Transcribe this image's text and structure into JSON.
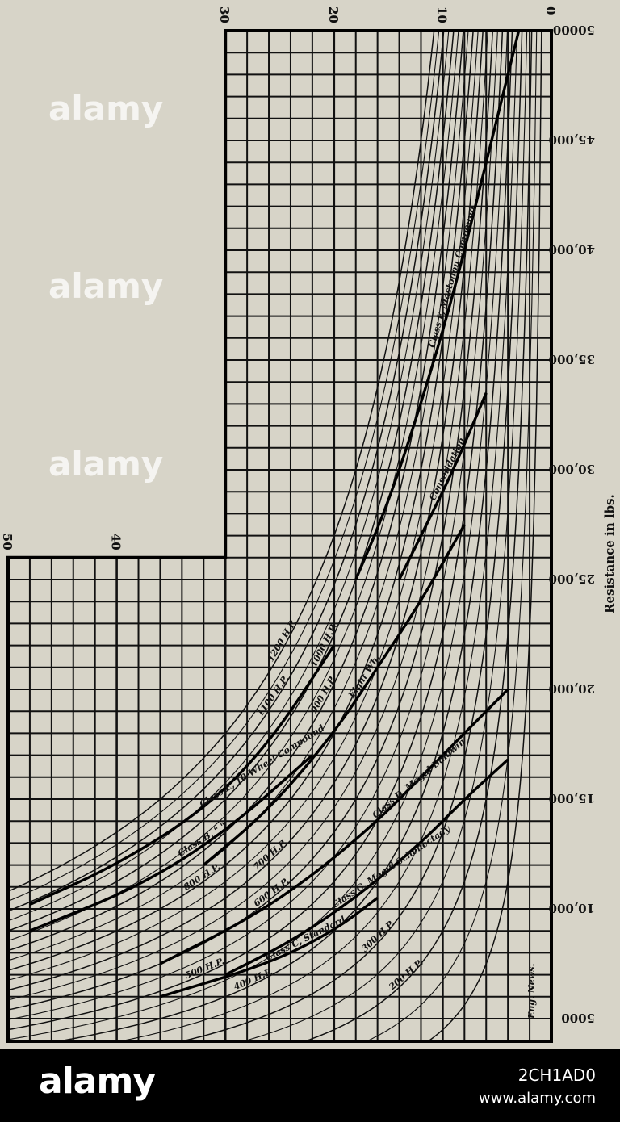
{
  "chart_data": {
    "type": "line",
    "title": "",
    "xlabel": "",
    "ylabel": "Resistance in lbs.",
    "x_ticks": [
      "50",
      "40",
      "30",
      "20",
      "10",
      "0"
    ],
    "x_tick_values": [
      50,
      40,
      30,
      20,
      10,
      0
    ],
    "y_ticks": [
      "5000",
      "10,000",
      "15,000",
      "20,000",
      "25,000",
      "30,000",
      "35,000",
      "40,000",
      "45,000",
      "50000"
    ],
    "y_tick_values": [
      5000,
      10000,
      15000,
      20000,
      25000,
      30000,
      35000,
      40000,
      45000,
      50000
    ],
    "xlim": [
      0,
      50
    ],
    "ylim": [
      4000,
      50000
    ],
    "orientation": "rotated 90 degrees",
    "grid": true,
    "credit": "Eng. News.",
    "hp_curves": {
      "labels": [
        "200 H.P.",
        "300 H.P.",
        "400 H.P.",
        "500 H.P.",
        "600 H.P.",
        "700 H.P.",
        "800 H.P.",
        "900 H.P.",
        "1000 H.P.",
        "1100 H.P.",
        "1200 H.P."
      ],
      "hp_values": [
        200,
        300,
        400,
        500,
        600,
        700,
        800,
        900,
        1000,
        1100,
        1200
      ]
    },
    "series": [
      {
        "name": "Class F, Mastodon Compound",
        "points": [
          [
            3,
            50000
          ],
          [
            6,
            44000
          ],
          [
            9,
            38000
          ],
          [
            12,
            33000
          ],
          [
            15,
            28500
          ],
          [
            18,
            25000
          ]
        ]
      },
      {
        "name": "Consolidation",
        "points": [
          [
            6,
            33500
          ],
          [
            9,
            30000
          ],
          [
            12,
            27000
          ],
          [
            14,
            25000
          ]
        ]
      },
      {
        "name": "Eight Wh.",
        "points": [
          [
            8,
            27500
          ],
          [
            12,
            24000
          ],
          [
            16,
            21000
          ],
          [
            20,
            18000
          ],
          [
            26,
            14500
          ],
          [
            32,
            12000
          ]
        ]
      },
      {
        "name": "Class E, 10 Wheel Compound",
        "points": [
          [
            20,
            22000
          ],
          [
            26,
            17500
          ],
          [
            32,
            14500
          ],
          [
            40,
            12000
          ],
          [
            48,
            10200
          ]
        ]
      },
      {
        "name": "Class B, \"  \"",
        "points": [
          [
            22,
            17000
          ],
          [
            30,
            13500
          ],
          [
            38,
            11000
          ],
          [
            48,
            9000
          ]
        ]
      },
      {
        "name": "Class D, Mogul Baldwin",
        "points": [
          [
            4,
            20000
          ],
          [
            8,
            18000
          ],
          [
            12,
            16000
          ],
          [
            16,
            14000
          ],
          [
            22,
            11500
          ],
          [
            28,
            9500
          ],
          [
            36,
            7500
          ]
        ]
      },
      {
        "name": "Class C, Mogul Schenectady",
        "points": [
          [
            4,
            16800
          ],
          [
            8,
            15000
          ],
          [
            12,
            13000
          ],
          [
            18,
            10500
          ],
          [
            24,
            8500
          ],
          [
            30,
            7000
          ]
        ]
      },
      {
        "name": "Class C, Standard",
        "points": [
          [
            16,
            10500
          ],
          [
            20,
            9000
          ],
          [
            26,
            7500
          ],
          [
            36,
            6000
          ]
        ]
      }
    ]
  },
  "watermark": {
    "text": "alamy"
  },
  "footer": {
    "logo": "alamy",
    "image_id": "2CH1AD0",
    "site": "www.alamy.com"
  }
}
